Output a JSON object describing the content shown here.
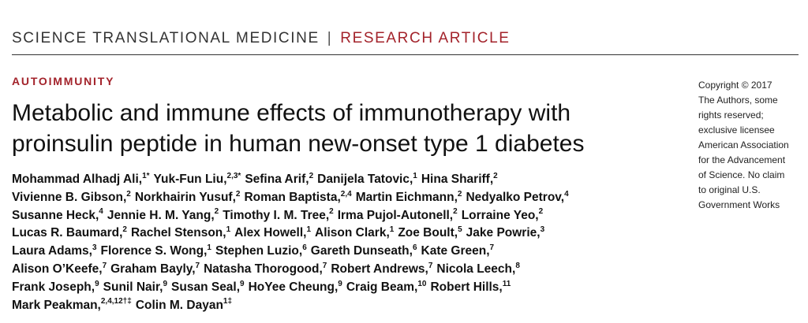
{
  "header": {
    "journal": "SCIENCE TRANSLATIONAL MEDICINE",
    "separator": "|",
    "article_type": "RESEARCH ARTICLE"
  },
  "section": "AUTOIMMUNITY",
  "title_lines": [
    "Metabolic and immune effects of immunotherapy with",
    "proinsulin peptide in human new-onset type 1 diabetes"
  ],
  "author_lines": [
    [
      {
        "name": "Mohammad Alhadj Ali,",
        "sup": "1*"
      },
      {
        "name": "Yuk-Fun Liu,",
        "sup": "2,3*"
      },
      {
        "name": "Sefina Arif,",
        "sup": "2"
      },
      {
        "name": "Danijela Tatovic,",
        "sup": "1"
      },
      {
        "name": "Hina Shariff,",
        "sup": "2"
      }
    ],
    [
      {
        "name": "Vivienne B. Gibson,",
        "sup": "2"
      },
      {
        "name": "Norkhairin Yusuf,",
        "sup": "2"
      },
      {
        "name": "Roman Baptista,",
        "sup": "2,4"
      },
      {
        "name": "Martin Eichmann,",
        "sup": "2"
      },
      {
        "name": "Nedyalko Petrov,",
        "sup": "4"
      }
    ],
    [
      {
        "name": "Susanne Heck,",
        "sup": "4"
      },
      {
        "name": "Jennie H. M. Yang,",
        "sup": "2"
      },
      {
        "name": "Timothy I. M. Tree,",
        "sup": "2"
      },
      {
        "name": "Irma Pujol-Autonell,",
        "sup": "2"
      },
      {
        "name": "Lorraine Yeo,",
        "sup": "2"
      }
    ],
    [
      {
        "name": "Lucas R. Baumard,",
        "sup": "2"
      },
      {
        "name": "Rachel Stenson,",
        "sup": "1"
      },
      {
        "name": "Alex Howell,",
        "sup": "1"
      },
      {
        "name": "Alison Clark,",
        "sup": "1"
      },
      {
        "name": "Zoe Boult,",
        "sup": "5"
      },
      {
        "name": "Jake Powrie,",
        "sup": "3"
      }
    ],
    [
      {
        "name": "Laura Adams,",
        "sup": "3"
      },
      {
        "name": "Florence S. Wong,",
        "sup": "1"
      },
      {
        "name": "Stephen Luzio,",
        "sup": "6"
      },
      {
        "name": "Gareth Dunseath,",
        "sup": "6"
      },
      {
        "name": "Kate Green,",
        "sup": "7"
      }
    ],
    [
      {
        "name": "Alison O’Keefe,",
        "sup": "7"
      },
      {
        "name": "Graham Bayly,",
        "sup": "7"
      },
      {
        "name": "Natasha Thorogood,",
        "sup": "7"
      },
      {
        "name": "Robert Andrews,",
        "sup": "7"
      },
      {
        "name": "Nicola Leech,",
        "sup": "8"
      }
    ],
    [
      {
        "name": "Frank Joseph,",
        "sup": "9"
      },
      {
        "name": "Sunil Nair,",
        "sup": "9"
      },
      {
        "name": "Susan Seal,",
        "sup": "9"
      },
      {
        "name": "HoYee Cheung,",
        "sup": "9"
      },
      {
        "name": "Craig Beam,",
        "sup": "10"
      },
      {
        "name": "Robert Hills,",
        "sup": "11"
      }
    ],
    [
      {
        "name": "Mark Peakman,",
        "sup": "2,4,12†‡"
      },
      {
        "name": "Colin M. Dayan",
        "sup": "1‡"
      }
    ]
  ],
  "copyright_lines": [
    "Copyright © 2017",
    "The Authors, some",
    "rights reserved;",
    "exclusive licensee",
    "American Association",
    "for the Advancement",
    "of Science. No claim",
    "to original U.S.",
    "Government Works"
  ]
}
